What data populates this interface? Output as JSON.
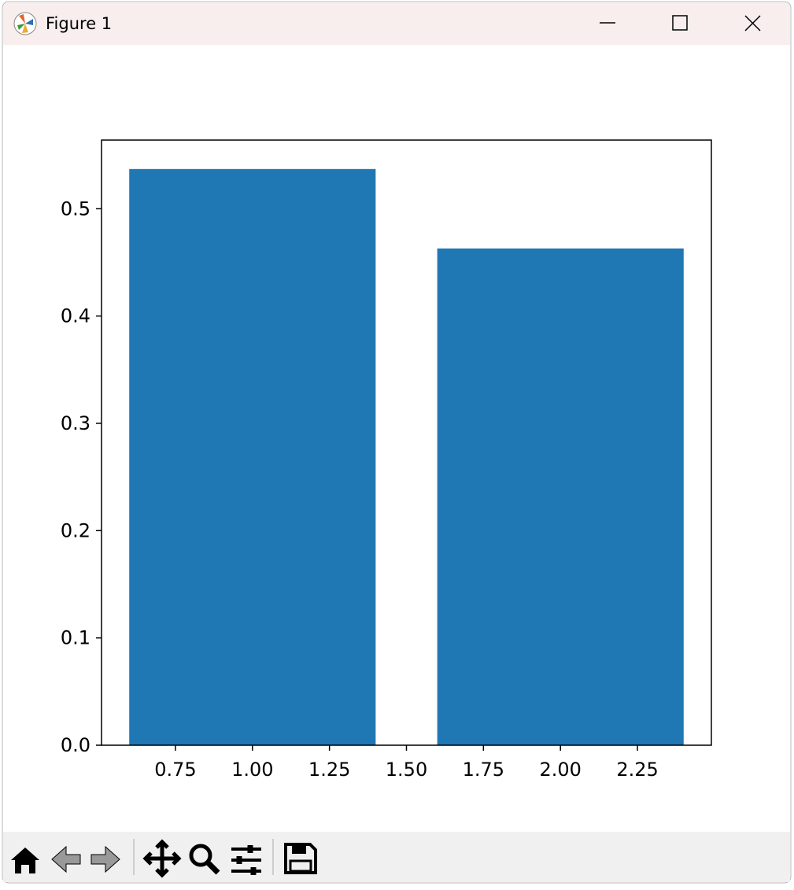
{
  "window": {
    "title": "Figure 1"
  },
  "chart_data": {
    "type": "bar",
    "x": [
      1,
      2
    ],
    "values": [
      0.537,
      0.463
    ],
    "color": "#1f77b4",
    "xlim": [
      0.51,
      2.49
    ],
    "xticks": [
      0.75,
      {
        "value": 1,
        "label": "1.00"
      },
      1.25,
      {
        "value": 1.5,
        "label": "1.50"
      },
      1.75,
      {
        "value": 2,
        "label": "2.00"
      },
      2.25
    ],
    "ylim": [
      0,
      0.564
    ],
    "yticks": [
      {
        "value": 0,
        "label": "0.0"
      },
      0.1,
      0.2,
      0.3,
      0.4,
      0.5
    ],
    "grid": false
  }
}
